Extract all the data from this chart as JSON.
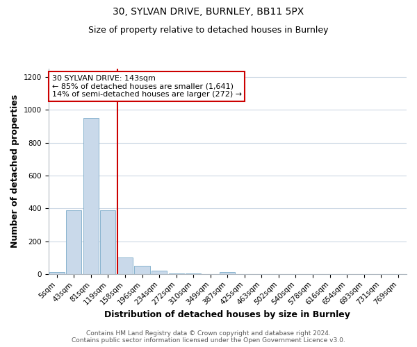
{
  "title_line1": "30, SYLVAN DRIVE, BURNLEY, BB11 5PX",
  "title_line2": "Size of property relative to detached houses in Burnley",
  "xlabel": "Distribution of detached houses by size in Burnley",
  "ylabel": "Number of detached properties",
  "bar_labels": [
    "5sqm",
    "43sqm",
    "81sqm",
    "119sqm",
    "158sqm",
    "196sqm",
    "234sqm",
    "272sqm",
    "310sqm",
    "349sqm",
    "387sqm",
    "425sqm",
    "463sqm",
    "502sqm",
    "540sqm",
    "578sqm",
    "616sqm",
    "654sqm",
    "693sqm",
    "731sqm",
    "769sqm"
  ],
  "bar_values": [
    10,
    390,
    950,
    390,
    100,
    50,
    20,
    5,
    5,
    0,
    10,
    0,
    0,
    0,
    0,
    0,
    0,
    0,
    0,
    0,
    0
  ],
  "bar_color": "#c9d9ea",
  "bar_edge_color": "#7aaac8",
  "red_line_index": 4,
  "red_line_color": "#cc0000",
  "annotation_text": "30 SYLVAN DRIVE: 143sqm\n← 85% of detached houses are smaller (1,641)\n14% of semi-detached houses are larger (272) →",
  "annotation_box_color": "#ffffff",
  "annotation_box_edge": "#cc0000",
  "ylim": [
    0,
    1250
  ],
  "yticks": [
    0,
    200,
    400,
    600,
    800,
    1000,
    1200
  ],
  "footer_line1": "Contains HM Land Registry data © Crown copyright and database right 2024.",
  "footer_line2": "Contains public sector information licensed under the Open Government Licence v3.0.",
  "bg_color": "#ffffff",
  "grid_color": "#ccd8e4",
  "title_fontsize": 10,
  "subtitle_fontsize": 9,
  "axis_label_fontsize": 9,
  "tick_fontsize": 7.5,
  "annotation_fontsize": 8,
  "footer_fontsize": 6.5
}
